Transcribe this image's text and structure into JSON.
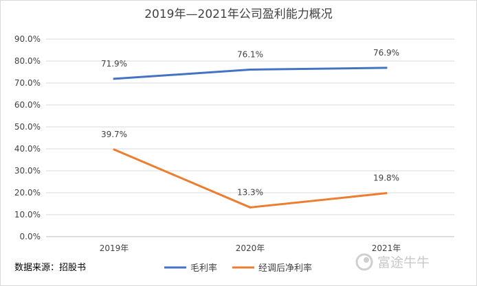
{
  "chart_data": {
    "type": "line",
    "title": "2019年—2021年公司盈利能力概况",
    "categories": [
      "2019年",
      "2020年",
      "2021年"
    ],
    "series": [
      {
        "name": "毛利率",
        "values": [
          71.9,
          76.1,
          76.9
        ],
        "labels": [
          "71.9%",
          "76.1%",
          "76.9%"
        ],
        "color": "#4472c4"
      },
      {
        "name": "经调后净利率",
        "values": [
          39.7,
          13.3,
          19.8
        ],
        "labels": [
          "39.7%",
          "13.3%",
          "19.8%"
        ],
        "color": "#ed7d31"
      }
    ],
    "ylim": [
      0,
      90
    ],
    "yticks": [
      0,
      10,
      20,
      30,
      40,
      50,
      60,
      70,
      80,
      90
    ],
    "ytick_labels": [
      "0.0%",
      "10.0%",
      "20.0%",
      "30.0%",
      "40.0%",
      "50.0%",
      "60.0%",
      "70.0%",
      "80.0%",
      "90.0%"
    ],
    "grid": true,
    "legend_position": "bottom"
  },
  "source_note": "数据来源：招股书",
  "watermark": "富途牛牛",
  "watermark_icon": "futu-logo-icon"
}
